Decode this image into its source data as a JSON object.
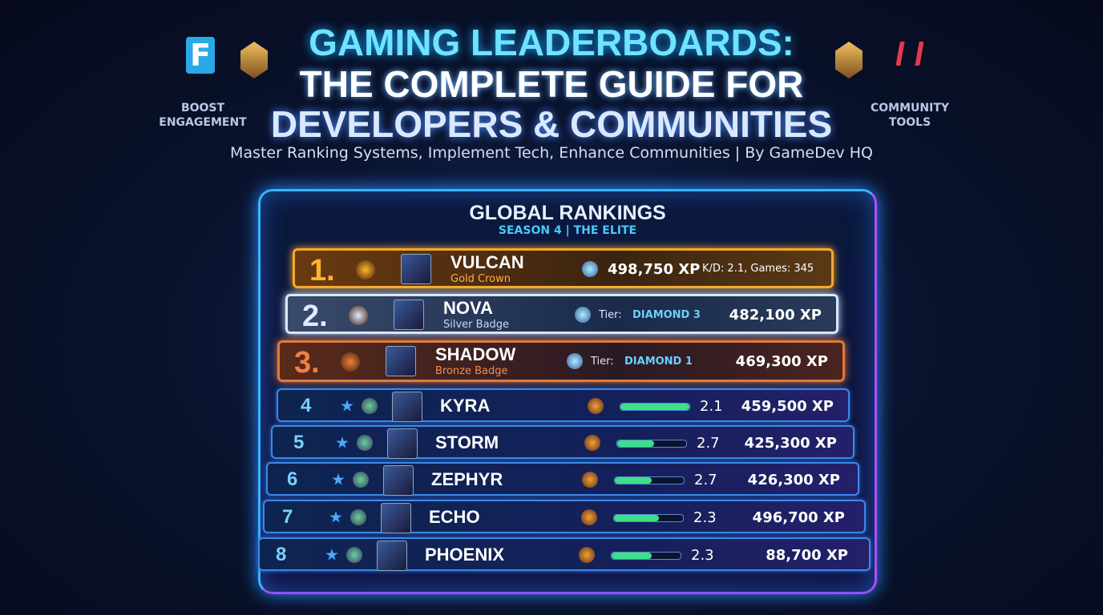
{
  "header": {
    "title_lines": [
      "GAMING LEADERBOARDS:",
      "THE COMPLETE GUIDE FOR",
      "DEVELOPERS & COMMUNITIES"
    ],
    "subtitle": "Master Ranking Systems, Implement Tech, Enhance Communities | By GameDev HQ",
    "logo_left": "F",
    "left_label": "BOOST ENGAGEMENT",
    "right_label": "COMMUNITY TOOLS"
  },
  "board": {
    "title": "GLOBAL RANKINGS",
    "season": "SEASON 4 | THE ELITE",
    "top": [
      {
        "rank": "1.",
        "name": "VULCAN",
        "badge": "Gold Crown",
        "xp": "498,750 XP",
        "stats": "K/D: 2.1, Games: 345"
      },
      {
        "rank": "2.",
        "name": "NOVA",
        "badge": "Silver Badge",
        "tier_label": "Tier:",
        "tier": "DIAMOND 3",
        "xp": "482,100 XP"
      },
      {
        "rank": "3.",
        "name": "SHADOW",
        "badge": "Bronze Badge",
        "tier_label": "Tier:",
        "tier": "DIAMOND 1",
        "xp": "469,300 XP"
      }
    ],
    "rows": [
      {
        "rank": "4",
        "name": "KYRA",
        "kd": "2.1",
        "xp": "459,500 XP"
      },
      {
        "rank": "5",
        "name": "STORM",
        "kd": "2.7",
        "xp": "425,300 XP"
      },
      {
        "rank": "6",
        "name": "ZEPHYR",
        "kd": "2.7",
        "xp": "426,300 XP"
      },
      {
        "rank": "7",
        "name": "ECHO",
        "kd": "2.3",
        "xp": "496,700 XP"
      },
      {
        "rank": "8",
        "name": "PHOENIX",
        "kd": "2.3",
        "xp": "88,700 XP"
      }
    ]
  }
}
